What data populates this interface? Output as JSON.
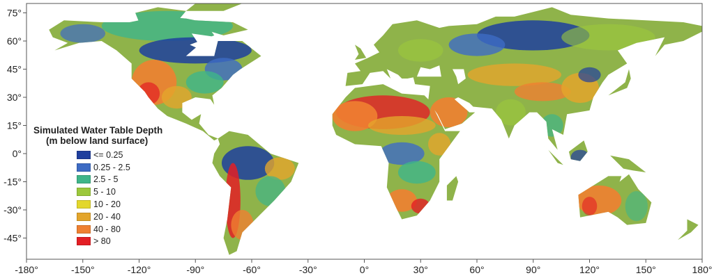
{
  "map": {
    "x_ticks": [
      "-180°",
      "-150°",
      "-120°",
      "-90°",
      "-60°",
      "-30°",
      "0°",
      "30°",
      "60°",
      "90°",
      "120°",
      "150°",
      "180°"
    ],
    "y_ticks": [
      "75°",
      "60°",
      "45°",
      "30°",
      "15°",
      "0°",
      "-15°",
      "-30°",
      "-45°"
    ],
    "x_tick_values": [
      -180,
      -150,
      -120,
      -90,
      -60,
      -30,
      0,
      30,
      60,
      90,
      120,
      150,
      180
    ],
    "y_tick_values": [
      75,
      60,
      45,
      30,
      15,
      0,
      -15,
      -30,
      -45
    ]
  },
  "legend": {
    "title": "Simulated Water Table Depth",
    "subtitle": "(m below land surface)",
    "items": [
      {
        "label": "<= 0.25",
        "color": "#1f3f9e"
      },
      {
        "label": "0.25 - 2.5",
        "color": "#3d6bc4"
      },
      {
        "label": "2.5 - 5",
        "color": "#3fb589"
      },
      {
        "label": "5 - 10",
        "color": "#9cc83c"
      },
      {
        "label": "10 - 20",
        "color": "#e3d72c"
      },
      {
        "label": "20 - 40",
        "color": "#e3a52c"
      },
      {
        "label": "40 - 80",
        "color": "#ef8031"
      },
      {
        "label": "> 80",
        "color": "#e31e24"
      }
    ]
  }
}
